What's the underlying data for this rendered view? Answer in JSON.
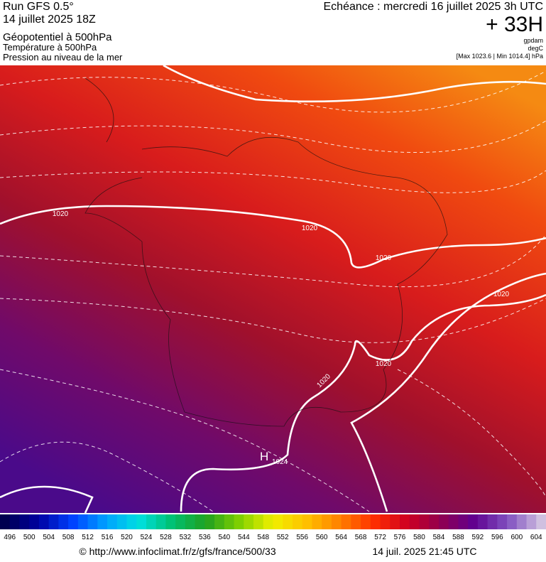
{
  "header": {
    "run": "Run GFS 0.5°",
    "date": "14 juillet 2025 18Z",
    "field1": "Géopotentiel à 500hPa",
    "field2": "Température à 500hPa",
    "field3": "Pression au niveau de la mer",
    "echeance": "Echéance : mercredi 16 juillet 2025 3h UTC",
    "offset": "+ 33H",
    "units": [
      "gpdam",
      "degC",
      "[Max 1023.6 | Min 1014.4] hPa"
    ]
  },
  "map": {
    "isobar_labels": [
      "1020",
      "1020",
      "1020",
      "1020",
      "1020",
      "1020"
    ],
    "high": {
      "symbol": "H",
      "value": "1024"
    }
  },
  "colorbar": {
    "labels": [
      496,
      500,
      504,
      508,
      512,
      516,
      520,
      524,
      528,
      532,
      536,
      540,
      544,
      548,
      552,
      556,
      560,
      564,
      568,
      572,
      576,
      580,
      584,
      588,
      592,
      596,
      600,
      604
    ]
  },
  "footer": {
    "url": "© http://www.infoclimat.fr/z/gfs/france/500/33",
    "timestamp": "14 juil. 2025 21:45 UTC"
  }
}
